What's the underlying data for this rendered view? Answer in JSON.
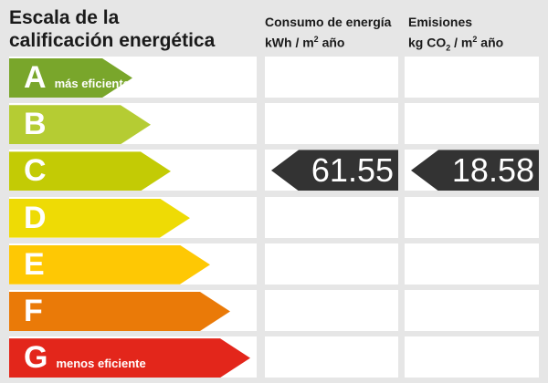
{
  "title": {
    "line1": "Escala de la",
    "line2": "calificación energética"
  },
  "columns": {
    "consumption": {
      "title": "Consumo de energía",
      "unit": {
        "base": "kWh / m",
        "sup": "2",
        "after": " año"
      }
    },
    "emissions": {
      "title": "Emisiones",
      "unit": {
        "base": "kg CO",
        "sub": "2",
        "mid": " / m",
        "sup": "2",
        "after": " año"
      }
    }
  },
  "scale": [
    {
      "letter": "A",
      "label": "más eficiente",
      "color": "#79A62B",
      "arrow_width": 135
    },
    {
      "letter": "B",
      "label": "",
      "color": "#B5CC33",
      "arrow_width": 155
    },
    {
      "letter": "C",
      "label": "",
      "color": "#C3CB05",
      "arrow_width": 177
    },
    {
      "letter": "D",
      "label": "",
      "color": "#EEDB05",
      "arrow_width": 198
    },
    {
      "letter": "E",
      "label": "",
      "color": "#FEC804",
      "arrow_width": 220
    },
    {
      "letter": "F",
      "label": "",
      "color": "#EA7A08",
      "arrow_width": 242
    },
    {
      "letter": "G",
      "label": "menos eficiente",
      "color": "#E3261B",
      "arrow_width": 264
    }
  ],
  "rating": {
    "letter": "C",
    "row_index": 2,
    "consumption_value": "61.55",
    "emissions_value": "18.58",
    "arrow_color": "#333333"
  },
  "colors": {
    "background": "#E6E6E6",
    "cell": "#FFFFFF",
    "text": "#1A1A1A"
  },
  "chart_data": {
    "type": "bar",
    "title": "Escala de la calificación energética",
    "categories": [
      "A",
      "B",
      "C",
      "D",
      "E",
      "F",
      "G"
    ],
    "scale_colors": [
      "#79A62B",
      "#B5CC33",
      "#C3CB05",
      "#EEDB05",
      "#FEC804",
      "#EA7A08",
      "#E3261B"
    ],
    "rating_letter": "C",
    "series": [
      {
        "name": "Consumo de energía (kWh/m² año)",
        "rating": "C",
        "value": 61.55
      },
      {
        "name": "Emisiones (kg CO₂/m² año)",
        "rating": "C",
        "value": 18.58
      }
    ],
    "annotations": [
      "A = más eficiente",
      "G = menos eficiente"
    ],
    "legend_position": "none"
  }
}
